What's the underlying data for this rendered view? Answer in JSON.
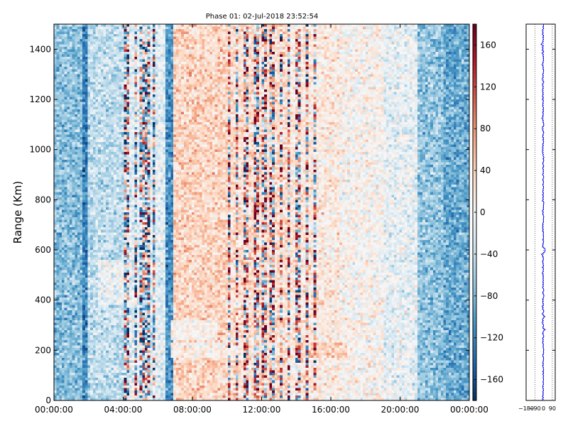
{
  "chart_data": {
    "type": "heatmap",
    "title": "Phase 01: 02-Jul-2018 23:52:54",
    "ylabel": "Range (Km)",
    "xlabel": "",
    "x_range": [
      "00:00:00",
      "24:00:00"
    ],
    "ylim": [
      0,
      1500
    ],
    "x_tick_labels": [
      "00:00:00",
      "04:00:00",
      "08:00:00",
      "12:00:00",
      "16:00:00",
      "20:00:00",
      "00:00:00"
    ],
    "y_tick_labels": [
      "0",
      "200",
      "400",
      "600",
      "800",
      "1000",
      "1200",
      "1400"
    ],
    "colorbar": {
      "range": [
        -180,
        180
      ],
      "tick_labels": [
        "−160",
        "−120",
        "−80",
        "−40",
        "0",
        "40",
        "80",
        "120",
        "160"
      ],
      "colormap": "RdBu_r",
      "colors": [
        "#053061",
        "#2166ac",
        "#4393c3",
        "#92c5de",
        "#d1e5f0",
        "#f7f7f7",
        "#fddbc7",
        "#f4a582",
        "#d6604d",
        "#b2182b",
        "#67001f"
      ]
    },
    "profile_panel": {
      "x_tick_labels": [
        "−180",
        "−90",
        "0",
        "90"
      ],
      "line_color": "#0000ff"
    },
    "description_note": "Phase vs range and local time; blue-dominated columns near 00:00-07:00 and 21:00-24:00, red/noisy vertical stripes near 04:00-06:30 and 10:00-15:00, pale horizontal band near 200 km from 06:30 to 17:00."
  }
}
